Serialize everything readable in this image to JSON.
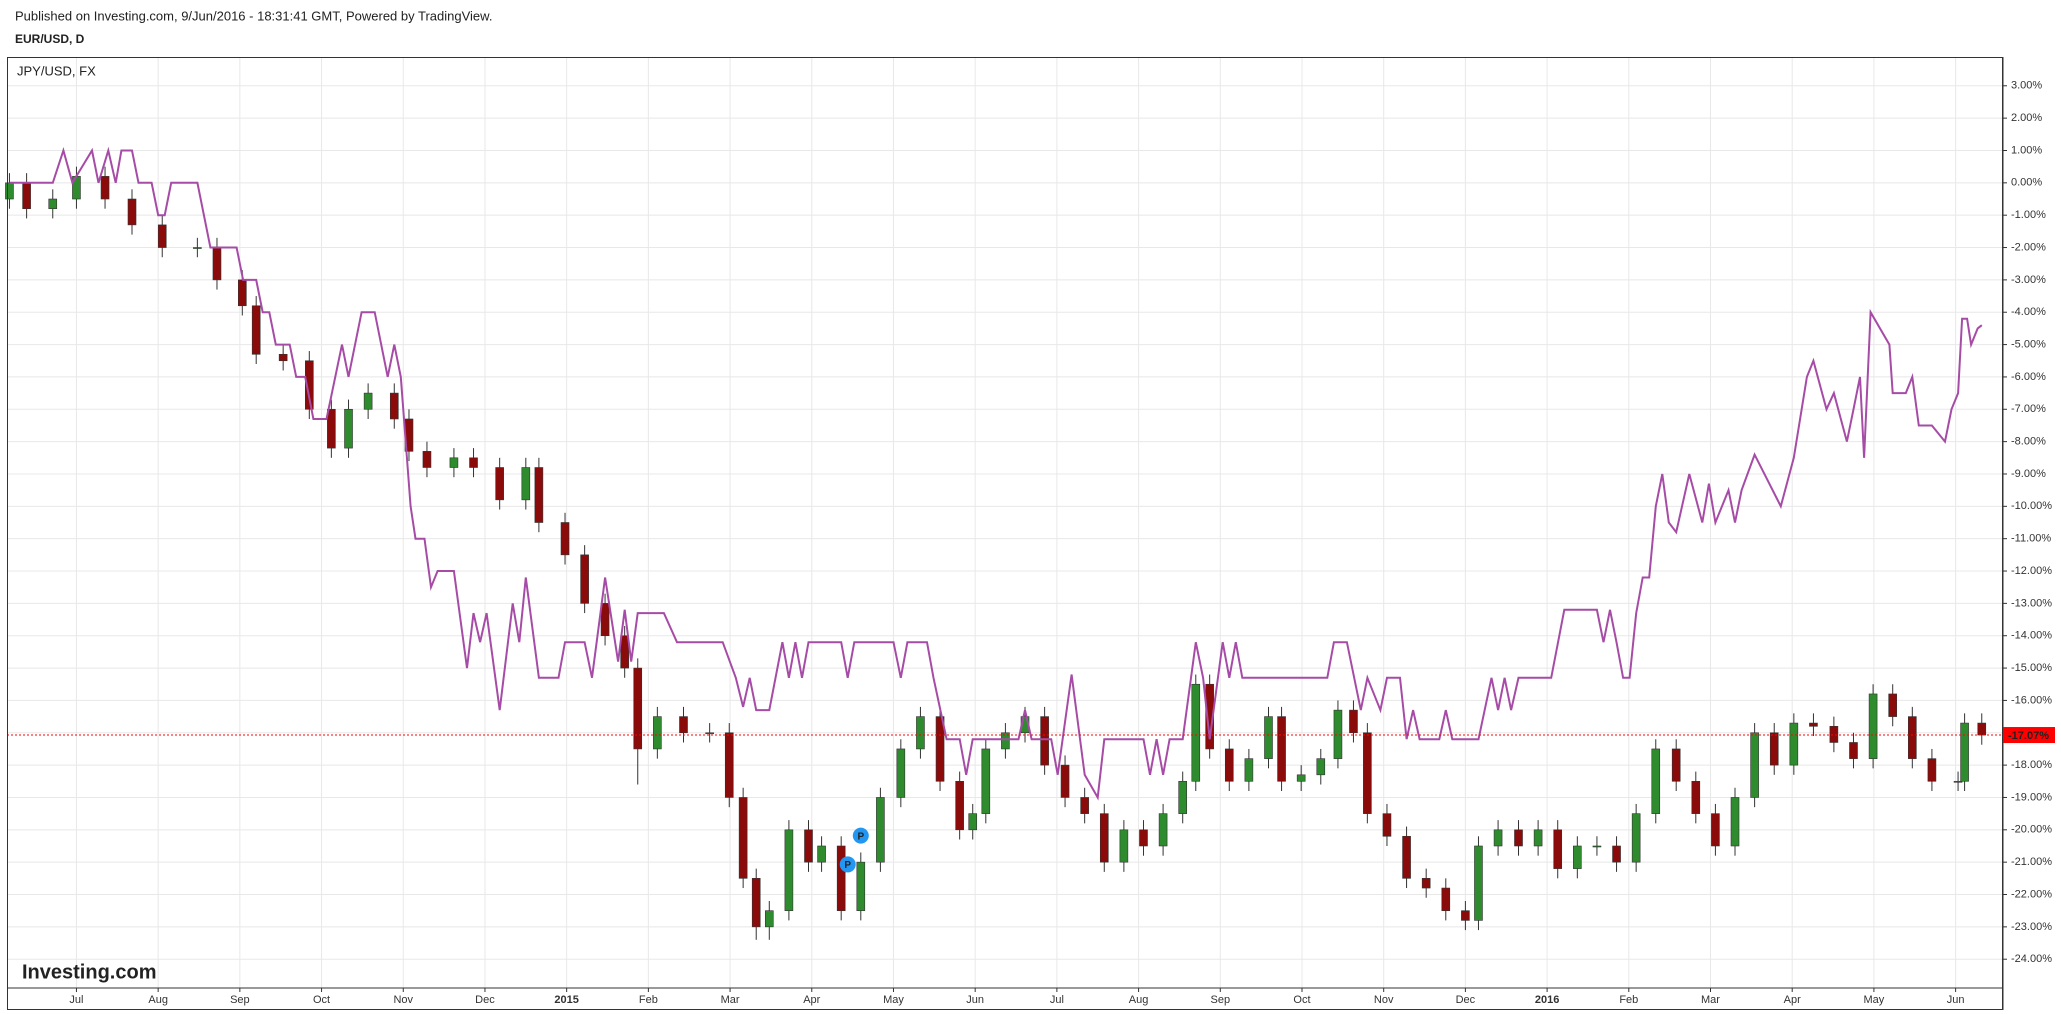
{
  "chart_data": {
    "type": "candlestick",
    "published": "Published on Investing.com, 9/Jun/2016 - 18:31:41 GMT, Powered by TradingView.",
    "title": "EUR/USD, D",
    "watermark": "Investing.com",
    "grid": true,
    "xlim": [
      -0.85,
      23.58
    ],
    "xticks": [
      {
        "value": 0,
        "label": "Jul"
      },
      {
        "value": 1,
        "label": "Aug"
      },
      {
        "value": 2,
        "label": "Sep"
      },
      {
        "value": 3,
        "label": "Oct"
      },
      {
        "value": 4,
        "label": "Nov"
      },
      {
        "value": 5,
        "label": "Dec"
      },
      {
        "value": 6,
        "label": "2015"
      },
      {
        "value": 7,
        "label": "Feb"
      },
      {
        "value": 8,
        "label": "Mar"
      },
      {
        "value": 9,
        "label": "Apr"
      },
      {
        "value": 10,
        "label": "May"
      },
      {
        "value": 11,
        "label": "Jun"
      },
      {
        "value": 12,
        "label": "Jul"
      },
      {
        "value": 13,
        "label": "Aug"
      },
      {
        "value": 14,
        "label": "Sep"
      },
      {
        "value": 15,
        "label": "Oct"
      },
      {
        "value": 16,
        "label": "Nov"
      },
      {
        "value": 17,
        "label": "Dec"
      },
      {
        "value": 18,
        "label": "2016"
      },
      {
        "value": 19,
        "label": "Feb"
      },
      {
        "value": 20,
        "label": "Mar"
      },
      {
        "value": 21,
        "label": "Apr"
      },
      {
        "value": 22,
        "label": "May"
      },
      {
        "value": 23,
        "label": "Jun"
      }
    ],
    "ylim": [
      -24.89,
      3.89
    ],
    "yticks": [
      {
        "value": 3,
        "label": "3.00%"
      },
      {
        "value": 2,
        "label": "2.00%"
      },
      {
        "value": 1,
        "label": "1.00%"
      },
      {
        "value": 0,
        "label": "0.00%"
      },
      {
        "value": -1,
        "label": "-1.00%"
      },
      {
        "value": -2,
        "label": "-2.00%"
      },
      {
        "value": -3,
        "label": "-3.00%"
      },
      {
        "value": -4,
        "label": "-4.00%"
      },
      {
        "value": -5,
        "label": "-5.00%"
      },
      {
        "value": -6,
        "label": "-6.00%"
      },
      {
        "value": -7,
        "label": "-7.00%"
      },
      {
        "value": -8,
        "label": "-8.00%"
      },
      {
        "value": -9,
        "label": "-9.00%"
      },
      {
        "value": -10,
        "label": "-10.00%"
      },
      {
        "value": -11,
        "label": "-11.00%"
      },
      {
        "value": -12,
        "label": "-12.00%"
      },
      {
        "value": -13,
        "label": "-13.00%"
      },
      {
        "value": -14,
        "label": "-14.00%"
      },
      {
        "value": -15,
        "label": "-15.00%"
      },
      {
        "value": -16,
        "label": "-16.00%"
      },
      {
        "value": -17,
        "label": "-17.00%"
      },
      {
        "value": -18,
        "label": "-18.00%"
      },
      {
        "value": -19,
        "label": "-19.00%"
      },
      {
        "value": -20,
        "label": "-20.00%"
      },
      {
        "value": -21,
        "label": "-21.00%"
      },
      {
        "value": -22,
        "label": "-22.00%"
      },
      {
        "value": -23,
        "label": "-23.00%"
      },
      {
        "value": -24,
        "label": "-24.00%"
      }
    ],
    "last_value": {
      "value": -17.07,
      "label": "-17.07%",
      "color": "#ff0000"
    },
    "series": [
      {
        "name": "EUR/USD, D",
        "type": "candlestick",
        "up_color": "#2e8b2e",
        "down_color": "#8b0a0a",
        "wick_color": "#333333",
        "x": [
          -0.82,
          -0.61,
          -0.29,
          0,
          0.35,
          0.68,
          1.05,
          1.48,
          1.72,
          2.03,
          2.2,
          2.53,
          2.85,
          3.12,
          3.33,
          3.57,
          3.89,
          4.07,
          4.29,
          4.62,
          4.86,
          5.18,
          5.5,
          5.66,
          5.98,
          6.22,
          6.47,
          6.71,
          6.87,
          7.11,
          7.43,
          7.75,
          7.99,
          8.16,
          8.32,
          8.48,
          8.72,
          8.96,
          9.12,
          9.36,
          9.6,
          9.84,
          10.09,
          10.33,
          10.57,
          10.81,
          10.97,
          11.13,
          11.37,
          11.61,
          11.85,
          12.1,
          12.34,
          12.58,
          12.82,
          13.06,
          13.3,
          13.54,
          13.7,
          13.87,
          14.11,
          14.35,
          14.59,
          14.75,
          14.99,
          15.23,
          15.44,
          15.63,
          15.8,
          16.04,
          16.28,
          16.52,
          16.76,
          17,
          17.16,
          17.4,
          17.65,
          17.89,
          18.13,
          18.37,
          18.61,
          18.85,
          19.09,
          19.33,
          19.58,
          19.82,
          20.06,
          20.3,
          20.54,
          20.78,
          21.02,
          21.26,
          21.51,
          21.75,
          21.99,
          22.23,
          22.47,
          22.71,
          23.03,
          23.11,
          23.32
        ],
        "open": [
          -0.5,
          0,
          -0.8,
          -0.5,
          0.2,
          -0.5,
          -1.3,
          -2,
          -2,
          -3,
          -3.8,
          -5.3,
          -5.5,
          -7,
          -8.2,
          -7,
          -6.5,
          -7.3,
          -8.3,
          -8.8,
          -8.5,
          -8.8,
          -9.8,
          -8.8,
          -10.5,
          -11.5,
          -13,
          -14,
          -15,
          -17.5,
          -16.5,
          -17,
          -17,
          -19,
          -21.5,
          -23,
          -22.5,
          -20,
          -21,
          -20.5,
          -22.5,
          -21,
          -19,
          -17.5,
          -16.5,
          -18.5,
          -20,
          -19.5,
          -17.5,
          -17,
          -16.5,
          -18,
          -19,
          -19.5,
          -21,
          -20,
          -20.5,
          -19.5,
          -18.5,
          -15.5,
          -17.5,
          -18.5,
          -17.8,
          -16.5,
          -18.5,
          -18.3,
          -17.8,
          -16.3,
          -17,
          -19.5,
          -20.2,
          -21.5,
          -21.8,
          -22.5,
          -22.8,
          -20.5,
          -20,
          -20.5,
          -20,
          -21.2,
          -20.5,
          -20.5,
          -21,
          -19.5,
          -17.5,
          -18.5,
          -19.5,
          -20.5,
          -19,
          -17,
          -18,
          -16.7,
          -16.8,
          -17.3,
          -17.8,
          -15.8,
          -16.5,
          -17.8,
          -18.5,
          -18.5,
          -16.7
        ],
        "high": [
          0.3,
          0.3,
          -0.2,
          0.5,
          0.5,
          -0.2,
          -1,
          -1.7,
          -1.7,
          -2.7,
          -3.5,
          -5,
          -5.2,
          -6.7,
          -6.7,
          -6.2,
          -6.2,
          -7,
          -8,
          -8.2,
          -8.2,
          -8.5,
          -8.5,
          -8.5,
          -10.2,
          -11.2,
          -12.7,
          -13.7,
          -14.7,
          -16.2,
          -16.2,
          -16.7,
          -16.7,
          -18.7,
          -21.2,
          -22.2,
          -19.7,
          -19.7,
          -20.2,
          -20.2,
          -20.7,
          -18.7,
          -17.2,
          -16.2,
          -16.2,
          -18.2,
          -19.2,
          -17.2,
          -16.7,
          -16.2,
          -16.2,
          -17.7,
          -18.7,
          -19.2,
          -19.7,
          -19.7,
          -19.2,
          -18.2,
          -15.2,
          -15.2,
          -17.2,
          -17.5,
          -16.2,
          -16.2,
          -18,
          -17.5,
          -16,
          -16,
          -16.7,
          -19.2,
          -19.9,
          -21.2,
          -21.5,
          -22.2,
          -20.2,
          -19.7,
          -19.7,
          -19.7,
          -19.7,
          -20.2,
          -20.2,
          -20.2,
          -19.2,
          -17.2,
          -17.2,
          -18.2,
          -19.2,
          -18.7,
          -16.7,
          -16.7,
          -16.4,
          -16.4,
          -16.5,
          -17,
          -15.5,
          -15.5,
          -16.2,
          -17.5,
          -18.2,
          -16.4,
          -16.4
        ],
        "low": [
          -0.8,
          -1.1,
          -1.1,
          -0.8,
          -0.8,
          -1.6,
          -2.3,
          -2.3,
          -3.3,
          -4.1,
          -5.6,
          -5.8,
          -7.3,
          -8.5,
          -8.5,
          -7.3,
          -7.6,
          -8.6,
          -9.1,
          -9.1,
          -9.1,
          -10.1,
          -10.1,
          -10.8,
          -11.8,
          -13.3,
          -14.3,
          -15.3,
          -18.6,
          -17.8,
          -17.3,
          -17.3,
          -19.3,
          -21.8,
          -23.4,
          -23.4,
          -22.8,
          -21.3,
          -21.3,
          -22.8,
          -22.8,
          -21.3,
          -19.3,
          -17.8,
          -18.8,
          -20.3,
          -20.3,
          -19.8,
          -17.8,
          -17.3,
          -18.3,
          -19.3,
          -19.8,
          -21.3,
          -21.3,
          -20.8,
          -20.8,
          -19.8,
          -18.8,
          -17.8,
          -18.8,
          -18.8,
          -18.1,
          -18.8,
          -18.8,
          -18.6,
          -18.1,
          -17.3,
          -19.8,
          -20.5,
          -21.8,
          -22.1,
          -22.8,
          -23.1,
          -23.1,
          -20.8,
          -20.8,
          -20.8,
          -21.5,
          -21.5,
          -20.8,
          -21.3,
          -21.3,
          -19.8,
          -18.8,
          -19.8,
          -20.8,
          -20.8,
          -19.3,
          -18.3,
          -18.3,
          -17.1,
          -17.6,
          -18.1,
          -18.1,
          -16.8,
          -18.1,
          -18.8,
          -18.8,
          -18.8,
          -17.37
        ],
        "close": [
          0,
          -0.8,
          -0.5,
          0.2,
          -0.5,
          -1.3,
          -2,
          -2,
          -3,
          -3.8,
          -5.3,
          -5.5,
          -7,
          -8.2,
          -7,
          -6.5,
          -7.3,
          -8.3,
          -8.8,
          -8.5,
          -8.8,
          -9.8,
          -8.8,
          -10.5,
          -11.5,
          -13,
          -14,
          -15,
          -17.5,
          -16.5,
          -17,
          -17,
          -19,
          -21.5,
          -23,
          -22.5,
          -20,
          -21,
          -20.5,
          -22.5,
          -21,
          -19,
          -17.5,
          -16.5,
          -18.5,
          -20,
          -19.5,
          -17.5,
          -17,
          -16.5,
          -18,
          -19,
          -19.5,
          -21,
          -20,
          -20.5,
          -19.5,
          -18.5,
          -15.5,
          -17.5,
          -18.5,
          -17.8,
          -16.5,
          -18.5,
          -18.3,
          -17.8,
          -16.3,
          -17,
          -19.5,
          -20.2,
          -21.5,
          -21.8,
          -22.5,
          -22.8,
          -20.5,
          -20,
          -20.5,
          -20,
          -21.2,
          -20.5,
          -20.5,
          -21,
          -19.5,
          -17.5,
          -18.5,
          -19.5,
          -20.5,
          -19,
          -17,
          -18,
          -16.7,
          -16.8,
          -17.3,
          -17.8,
          -15.8,
          -16.5,
          -17.8,
          -18.5,
          -18.5,
          -16.7,
          -17.07
        ]
      },
      {
        "name": "JPY/USD, FX",
        "type": "line",
        "color": "#a64ca6",
        "x": [
          -0.82,
          -0.29,
          -0.16,
          -0.05,
          0.19,
          0.27,
          0.39,
          0.48,
          0.55,
          0.68,
          0.76,
          0.92,
          1,
          1.08,
          1.16,
          1.48,
          1.64,
          1.96,
          2.04,
          2.2,
          2.28,
          2.36,
          2.44,
          2.61,
          2.69,
          2.8,
          2.9,
          3.06,
          3.25,
          3.33,
          3.49,
          3.65,
          3.81,
          3.89,
          3.97,
          4.09,
          4.15,
          4.26,
          4.34,
          4.42,
          4.62,
          4.78,
          4.86,
          4.94,
          5.02,
          5.18,
          5.34,
          5.42,
          5.5,
          5.66,
          5.9,
          5.98,
          6.22,
          6.31,
          6.47,
          6.63,
          6.71,
          6.79,
          6.87,
          7.19,
          7.35,
          7.91,
          8.07,
          8.16,
          8.24,
          8.32,
          8.48,
          8.64,
          8.72,
          8.8,
          8.88,
          8.96,
          9.36,
          9.44,
          9.52,
          10,
          10.09,
          10.17,
          10.41,
          10.49,
          10.65,
          10.81,
          10.89,
          10.97,
          11.53,
          11.61,
          11.69,
          11.93,
          12.01,
          12.18,
          12.34,
          12.5,
          12.58,
          13.06,
          13.14,
          13.22,
          13.3,
          13.38,
          13.54,
          13.7,
          13.79,
          13.87,
          14.03,
          14.11,
          14.19,
          14.27,
          15.31,
          15.39,
          15.55,
          15.72,
          15.8,
          15.96,
          16.04,
          16.2,
          16.28,
          16.36,
          16.44,
          16.68,
          16.76,
          16.84,
          17.16,
          17.32,
          17.4,
          17.48,
          17.56,
          17.65,
          18.05,
          18.21,
          18.61,
          18.69,
          18.77,
          18.85,
          18.93,
          19.01,
          19.09,
          19.17,
          19.25,
          19.33,
          19.41,
          19.49,
          19.58,
          19.74,
          19.9,
          19.98,
          20.06,
          20.22,
          20.3,
          20.38,
          20.54,
          20.7,
          20.86,
          21.02,
          21.18,
          21.26,
          21.42,
          21.51,
          21.67,
          21.75,
          21.83,
          21.88,
          21.96,
          22.19,
          22.23,
          22.39,
          22.47,
          22.55,
          22.71,
          22.87,
          22.95,
          23.03,
          23.08,
          23.14,
          23.19,
          23.27,
          23.32
        ],
        "values": [
          0,
          0,
          1,
          0,
          1,
          0,
          1,
          0,
          1,
          1,
          0,
          0,
          -1,
          -1,
          0,
          0,
          -2,
          -2,
          -3,
          -3,
          -4,
          -4,
          -5,
          -5,
          -6,
          -6,
          -7.3,
          -7.3,
          -5,
          -6,
          -4,
          -4,
          -6,
          -5,
          -6,
          -10,
          -11,
          -11,
          -12.5,
          -12,
          -12,
          -15,
          -13.3,
          -14.2,
          -13.3,
          -16.3,
          -13,
          -14.2,
          -12.2,
          -15.3,
          -15.3,
          -14.2,
          -14.2,
          -15.3,
          -12.2,
          -14.8,
          -13.2,
          -14.8,
          -13.3,
          -13.3,
          -14.2,
          -14.2,
          -15.3,
          -16.2,
          -15.3,
          -16.3,
          -16.3,
          -14.2,
          -15.3,
          -14.2,
          -15.3,
          -14.2,
          -14.2,
          -15.3,
          -14.2,
          -14.2,
          -15.3,
          -14.2,
          -14.2,
          -15.3,
          -17.2,
          -17.2,
          -18.3,
          -17.2,
          -17.2,
          -16.3,
          -17.2,
          -17.2,
          -18.3,
          -15.2,
          -18.3,
          -19,
          -17.2,
          -17.2,
          -18.3,
          -17.2,
          -18.3,
          -17.2,
          -17.2,
          -14.2,
          -15.3,
          -17.2,
          -14.2,
          -15.3,
          -14.2,
          -15.3,
          -15.3,
          -14.2,
          -14.2,
          -16.3,
          -15.3,
          -16.3,
          -15.3,
          -15.3,
          -17.2,
          -16.3,
          -17.2,
          -17.2,
          -16.3,
          -17.2,
          -17.2,
          -15.3,
          -16.3,
          -15.3,
          -16.3,
          -15.3,
          -15.3,
          -13.2,
          -13.2,
          -14.2,
          -13.2,
          -14.2,
          -15.3,
          -15.3,
          -13.3,
          -12.2,
          -12.2,
          -10,
          -9,
          -10.5,
          -10.8,
          -9,
          -10.5,
          -9.3,
          -10.5,
          -9.5,
          -10.5,
          -9.5,
          -8.4,
          -9.2,
          -10,
          -8.5,
          -6,
          -5.5,
          -7,
          -6.5,
          -8,
          -7,
          -6,
          -8.5,
          -4,
          -5,
          -6.5,
          -6.5,
          -6,
          -7.5,
          -7.5,
          -8,
          -7,
          -6.5,
          -4.2,
          -4.2,
          -5,
          -4.5,
          -4.4
        ]
      }
    ],
    "markers": [
      {
        "x": 9.6,
        "y": -20.18,
        "label": "P",
        "color": "#2196f3"
      },
      {
        "x": 9.44,
        "y": -21.07,
        "label": "P",
        "color": "#2196f3"
      }
    ]
  }
}
